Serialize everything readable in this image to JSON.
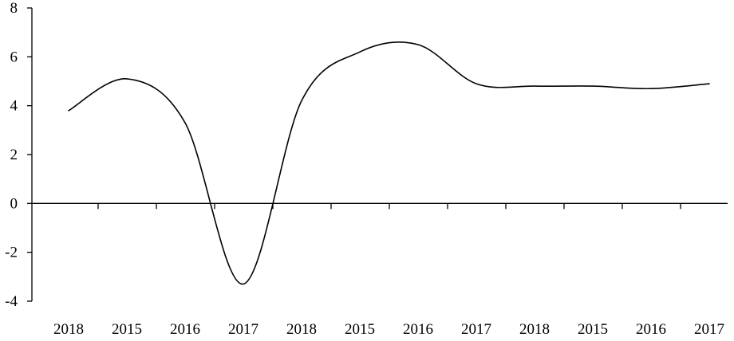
{
  "chart_data": {
    "type": "line",
    "title": "",
    "xlabel": "",
    "ylabel": "",
    "ylim": [
      -4,
      8
    ],
    "yticks": [
      -4,
      -2,
      0,
      2,
      4,
      6,
      8
    ],
    "yticklabels": [
      "-4",
      "-2",
      "0",
      "2",
      "4",
      "6",
      "8"
    ],
    "categories": [
      "2018",
      "2015",
      "2016",
      "2017",
      "2018",
      "2015",
      "2016",
      "2017",
      "2018",
      "2015",
      "2016",
      "2017"
    ],
    "smooth": true,
    "grid": false,
    "legend": "none",
    "series": [
      {
        "values": [
          3.8,
          5.1,
          3.3,
          -3.3,
          4.2,
          6.2,
          6.5,
          4.9,
          4.8,
          4.8,
          4.7,
          4.9
        ]
      }
    ],
    "colors": {
      "line": "#000000",
      "axis": "#000000",
      "background": "#ffffff"
    }
  }
}
